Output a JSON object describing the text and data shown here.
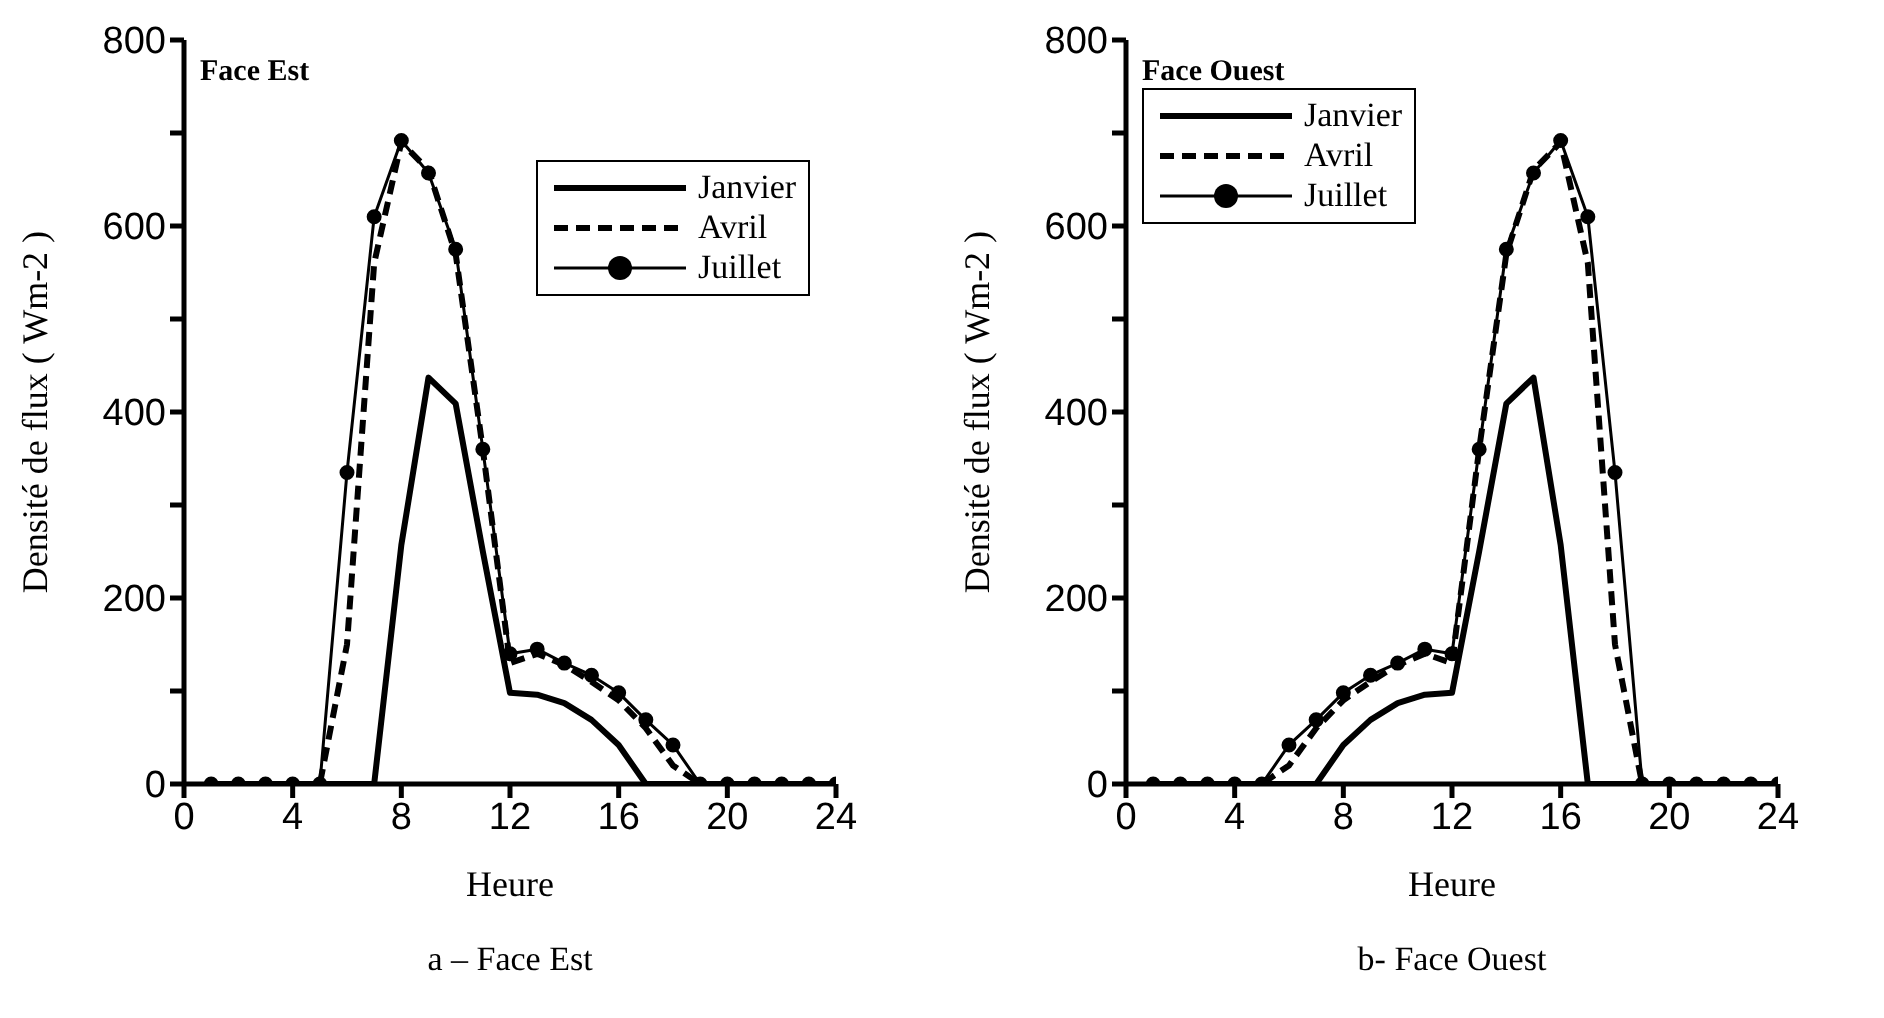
{
  "chart_data": [
    {
      "type": "line",
      "title": "Face Est",
      "xlabel": "Heure",
      "ylabel": "Densité de flux ( Wm-2 )",
      "annotations": [
        "a – Face Est"
      ],
      "x": [
        1,
        2,
        3,
        4,
        5,
        6,
        7,
        8,
        9,
        10,
        11,
        12,
        13,
        14,
        15,
        16,
        17,
        18,
        19,
        20,
        21,
        22,
        23,
        24
      ],
      "xlim": [
        0,
        24
      ],
      "xticks": [
        0,
        4,
        8,
        12,
        16,
        20,
        24
      ],
      "ylim": [
        0,
        800
      ],
      "yticks": [
        0,
        {
          "value": 100,
          "label": null
        },
        200,
        {
          "value": 300,
          "label": null
        },
        400,
        {
          "value": 500,
          "label": null
        },
        600,
        {
          "value": 700,
          "label": null
        },
        800
      ],
      "grid": false,
      "legend": "top right",
      "series": [
        {
          "name": "Janvier",
          "color": "#000000",
          "line_style": "solid",
          "marker": "none",
          "values": [
            0,
            0,
            0,
            0,
            0,
            0,
            0,
            257,
            437,
            409,
            250,
            98,
            96,
            87,
            69,
            42,
            0,
            0,
            0,
            0,
            0,
            0,
            0,
            0
          ]
        },
        {
          "name": "Avril",
          "color": "#000000",
          "line_style": "dashed",
          "marker": "none",
          "values": [
            0,
            0,
            0,
            0,
            0,
            150,
            560,
            690,
            660,
            570,
            360,
            130,
            140,
            128,
            110,
            90,
            60,
            20,
            0,
            0,
            0,
            0,
            0,
            0
          ]
        },
        {
          "name": "Juillet",
          "color": "#000000",
          "line_style": "solid",
          "marker": "circle",
          "values": [
            0,
            0,
            0,
            0,
            0,
            335,
            610,
            692,
            657,
            575,
            360,
            140,
            145,
            130,
            117,
            98,
            69,
            42,
            0,
            0,
            0,
            0,
            0,
            0
          ]
        }
      ]
    },
    {
      "type": "line",
      "title": "Face Ouest",
      "xlabel": "Heure",
      "ylabel": "Densité de flux ( Wm-2 )",
      "annotations": [
        "b- Face Ouest"
      ],
      "x": [
        1,
        2,
        3,
        4,
        5,
        6,
        7,
        8,
        9,
        10,
        11,
        12,
        13,
        14,
        15,
        16,
        17,
        18,
        19,
        20,
        21,
        22,
        23,
        24
      ],
      "xlim": [
        0,
        24
      ],
      "xticks": [
        0,
        4,
        8,
        12,
        16,
        20,
        24
      ],
      "ylim": [
        0,
        800
      ],
      "yticks": [
        0,
        {
          "value": 100,
          "label": null
        },
        200,
        {
          "value": 300,
          "label": null
        },
        400,
        {
          "value": 500,
          "label": null
        },
        600,
        {
          "value": 700,
          "label": null
        },
        800
      ],
      "grid": false,
      "legend": "top left",
      "series": [
        {
          "name": "Janvier",
          "color": "#000000",
          "line_style": "solid",
          "marker": "none",
          "values": [
            0,
            0,
            0,
            0,
            0,
            0,
            0,
            42,
            69,
            87,
            96,
            98,
            250,
            409,
            437,
            257,
            0,
            0,
            0,
            0,
            0,
            0,
            0,
            0
          ]
        },
        {
          "name": "Avril",
          "color": "#000000",
          "line_style": "dashed",
          "marker": "none",
          "values": [
            0,
            0,
            0,
            0,
            0,
            20,
            60,
            90,
            110,
            128,
            140,
            130,
            360,
            570,
            660,
            690,
            560,
            150,
            0,
            0,
            0,
            0,
            0,
            0
          ]
        },
        {
          "name": "Juillet",
          "color": "#000000",
          "line_style": "solid",
          "marker": "circle",
          "values": [
            0,
            0,
            0,
            0,
            0,
            42,
            69,
            98,
            117,
            130,
            145,
            140,
            360,
            575,
            657,
            692,
            610,
            335,
            0,
            0,
            0,
            0,
            0,
            0
          ]
        }
      ]
    }
  ]
}
